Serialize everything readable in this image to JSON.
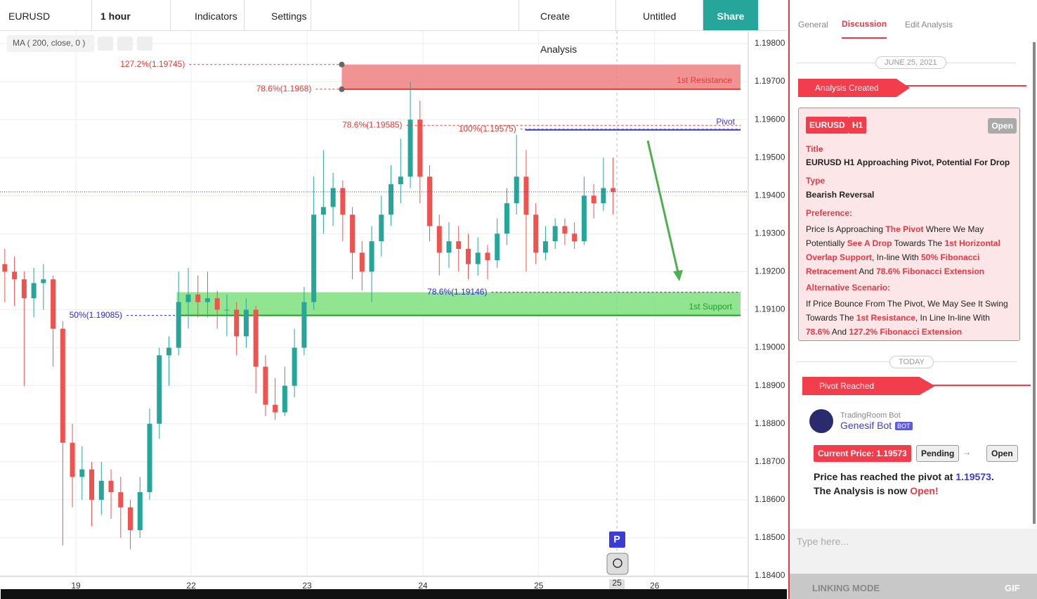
{
  "toolbar": {
    "symbol": "EURUSD",
    "interval": "1 hour",
    "indicators": "Indicators",
    "settings": "Settings",
    "create_analysis": "Create Analysis",
    "layout": "Untitled",
    "share": "Share"
  },
  "indicator_legend": "MA ( 200, close, 0 )",
  "chart_data": {
    "type": "candlestick",
    "up_color": "#26a69a",
    "down_color": "#ef5350",
    "xlim": [
      0,
      77.5
    ],
    "ylim": [
      1.184,
      1.198
    ],
    "xticks": [
      {
        "value": 7.86,
        "label": "19"
      },
      {
        "value": 19.8,
        "label": "22"
      },
      {
        "value": 31.8,
        "label": "23"
      },
      {
        "value": 43.8,
        "label": "24"
      },
      {
        "value": 55.8,
        "label": "25"
      },
      {
        "value": 67.8,
        "label": "26"
      }
    ],
    "yticks": [
      {
        "value": 1.184,
        "label": "1.18400"
      },
      {
        "value": 1.185,
        "label": "1.18500"
      },
      {
        "value": 1.186,
        "label": "1.18600"
      },
      {
        "value": 1.187,
        "label": "1.18700"
      },
      {
        "value": 1.188,
        "label": "1.18800"
      },
      {
        "value": 1.189,
        "label": "1.18900"
      },
      {
        "value": 1.19,
        "label": "1.19000"
      },
      {
        "value": 1.191,
        "label": "1.19100"
      },
      {
        "value": 1.192,
        "label": "1.19200"
      },
      {
        "value": 1.193,
        "label": "1.19300"
      },
      {
        "value": 1.194,
        "label": "1.19400"
      },
      {
        "value": 1.195,
        "label": "1.19500"
      },
      {
        "value": 1.196,
        "label": "1.19600"
      },
      {
        "value": 1.197,
        "label": "1.19700"
      },
      {
        "value": 1.198,
        "label": "1.19800"
      }
    ],
    "grid": true,
    "cursor": {
      "x": 63.9,
      "label": "25"
    },
    "ohlc": [
      [
        1.1922,
        1.1926,
        1.1912,
        1.192
      ],
      [
        1.192,
        1.1924,
        1.1911,
        1.1918
      ],
      [
        1.1918,
        1.192,
        1.189,
        1.1913
      ],
      [
        1.1913,
        1.1921,
        1.1908,
        1.1917
      ],
      [
        1.1917,
        1.1922,
        1.191,
        1.1918
      ],
      [
        1.1918,
        1.1919,
        1.1895,
        1.1905
      ],
      [
        1.1905,
        1.1907,
        1.1848,
        1.1875
      ],
      [
        1.1875,
        1.188,
        1.1858,
        1.1866
      ],
      [
        1.1866,
        1.1874,
        1.186,
        1.1868
      ],
      [
        1.1868,
        1.187,
        1.1853,
        1.186
      ],
      [
        1.186,
        1.187,
        1.1856,
        1.1865
      ],
      [
        1.1865,
        1.1868,
        1.1855,
        1.1862
      ],
      [
        1.1862,
        1.1866,
        1.185,
        1.1858
      ],
      [
        1.1858,
        1.186,
        1.1847,
        1.1852
      ],
      [
        1.1852,
        1.1866,
        1.185,
        1.1862
      ],
      [
        1.1862,
        1.1884,
        1.186,
        1.188
      ],
      [
        1.188,
        1.19,
        1.1876,
        1.1898
      ],
      [
        1.1898,
        1.1903,
        1.189,
        1.19
      ],
      [
        1.19,
        1.192,
        1.1898,
        1.1912
      ],
      [
        1.1912,
        1.1921,
        1.1905,
        1.1914
      ],
      [
        1.1914,
        1.1919,
        1.1908,
        1.1912
      ],
      [
        1.1912,
        1.192,
        1.1908,
        1.1913
      ],
      [
        1.1913,
        1.1915,
        1.1905,
        1.191
      ],
      [
        1.191,
        1.1914,
        1.1903,
        1.191
      ],
      [
        1.191,
        1.1912,
        1.1898,
        1.1903
      ],
      [
        1.1903,
        1.1913,
        1.19,
        1.191
      ],
      [
        1.191,
        1.1911,
        1.1888,
        1.1895
      ],
      [
        1.1895,
        1.1898,
        1.1882,
        1.1885
      ],
      [
        1.1885,
        1.1892,
        1.1881,
        1.1883
      ],
      [
        1.1883,
        1.1895,
        1.1882,
        1.189
      ],
      [
        1.189,
        1.1905,
        1.1887,
        1.19
      ],
      [
        1.19,
        1.1916,
        1.1898,
        1.1912
      ],
      [
        1.1912,
        1.1945,
        1.191,
        1.1935
      ],
      [
        1.1935,
        1.1952,
        1.193,
        1.1937
      ],
      [
        1.1937,
        1.1946,
        1.1932,
        1.1942
      ],
      [
        1.1942,
        1.1944,
        1.1928,
        1.1935
      ],
      [
        1.1935,
        1.1937,
        1.1918,
        1.1925
      ],
      [
        1.1925,
        1.1928,
        1.1915,
        1.192
      ],
      [
        1.192,
        1.1932,
        1.1912,
        1.1928
      ],
      [
        1.1928,
        1.194,
        1.1924,
        1.1935
      ],
      [
        1.1935,
        1.1948,
        1.1932,
        1.1943
      ],
      [
        1.1943,
        1.1955,
        1.1938,
        1.1945
      ],
      [
        1.1945,
        1.197,
        1.1942,
        1.196
      ],
      [
        1.196,
        1.1965,
        1.1938,
        1.1945
      ],
      [
        1.1945,
        1.1948,
        1.1928,
        1.1932
      ],
      [
        1.1932,
        1.1935,
        1.1919,
        1.1925
      ],
      [
        1.1925,
        1.1933,
        1.1921,
        1.1928
      ],
      [
        1.1928,
        1.1932,
        1.192,
        1.1926
      ],
      [
        1.1926,
        1.193,
        1.1918,
        1.1922
      ],
      [
        1.1922,
        1.1929,
        1.1919,
        1.1925
      ],
      [
        1.1925,
        1.1927,
        1.1918,
        1.1923
      ],
      [
        1.1923,
        1.1934,
        1.1921,
        1.193
      ],
      [
        1.193,
        1.1942,
        1.1927,
        1.1938
      ],
      [
        1.1938,
        1.1956,
        1.1935,
        1.1945
      ],
      [
        1.1945,
        1.1952,
        1.192,
        1.1935
      ],
      [
        1.1935,
        1.1938,
        1.1922,
        1.1925
      ],
      [
        1.1925,
        1.1932,
        1.1923,
        1.1928
      ],
      [
        1.1928,
        1.1934,
        1.1926,
        1.1932
      ],
      [
        1.1932,
        1.1934,
        1.1927,
        1.193
      ],
      [
        1.193,
        1.1933,
        1.1926,
        1.1928
      ],
      [
        1.1928,
        1.1945,
        1.1927,
        1.194
      ],
      [
        1.194,
        1.1943,
        1.1934,
        1.1938
      ],
      [
        1.1938,
        1.195,
        1.1936,
        1.1942
      ],
      [
        1.1942,
        1.195,
        1.1935,
        1.1941
      ]
    ],
    "zones": [
      {
        "label": "1st Resistance",
        "top": 1.19745,
        "bottom": 1.1968,
        "from": 35.4,
        "to": 76.7,
        "color": "#f08080",
        "text_color": "#e53935"
      },
      {
        "label": "1st Support",
        "top": 1.19146,
        "bottom": 1.19085,
        "from": 18.3,
        "to": 76.7,
        "color": "#7ee07e",
        "text_color": "#1e9e1e"
      }
    ],
    "levels": [
      {
        "label": "127.2%(1.19745)",
        "price": 1.19745,
        "from": 19.6,
        "to": 35.4,
        "color": "#e53935"
      },
      {
        "label": "78.6%(1.1968)",
        "price": 1.1968,
        "from": 32.7,
        "to": 35.4,
        "color": "#e53935"
      },
      {
        "label": "78.6%(1.19585)",
        "price": 1.19585,
        "from": 42.1,
        "to": 76.7,
        "color": "#e53935"
      },
      {
        "label": "100%(1.19575)",
        "price": 1.19575,
        "from": 53.9,
        "to": 76.7,
        "color": "#e53935"
      },
      {
        "label": "78.6%(1.19146)",
        "price": 1.19146,
        "from": 50.9,
        "to": 76.7,
        "color": "#2a2ad0"
      },
      {
        "label": "50%(1.19085)",
        "price": 1.19085,
        "from": 13.1,
        "to": 18.3,
        "color": "#2a2ad0"
      }
    ],
    "pivot": {
      "label": "Pivot",
      "price": 1.19573,
      "from": 54.4,
      "to": 76.7,
      "color": "#3b3bd6"
    }
  },
  "panel": {
    "tabs": [
      "General",
      "Discussion",
      "Edit Analysis"
    ],
    "date": "JUNE 25, 2021",
    "created": "Analysis Created",
    "card": {
      "symbol": "EURUSD",
      "timeframe": "H1",
      "status": "Open",
      "title_label": "Title",
      "title": "EURUSD H1 Approaching Pivot, Potential For Drop",
      "type_label": "Type",
      "type": "Bearish Reversal",
      "preference_label": "Preference:",
      "preference": [
        {
          "t": "Price Is Approaching "
        },
        {
          "t": "The Pivot",
          "hl": "red"
        },
        {
          "t": " Where We May Potentially "
        },
        {
          "t": "See A Drop",
          "hl": "red"
        },
        {
          "t": " Towards The "
        },
        {
          "t": "1st Horizontal Overlap Support",
          "hl": "red"
        },
        {
          "t": ", In-line With "
        },
        {
          "t": "50% Fibonacci Retracement",
          "hl": "red"
        },
        {
          "t": " And "
        },
        {
          "t": "78.6% Fibonacci Extension",
          "hl": "red"
        }
      ],
      "alternative_label": "Alternative Scenario:",
      "alternative": [
        {
          "t": "If Price Bounce From The Pivot, We May See It Swing Towards The "
        },
        {
          "t": "1st Resistance",
          "hl": "red"
        },
        {
          "t": ", In Line In-line With "
        },
        {
          "t": "78.6%",
          "hl": "red"
        },
        {
          "t": " And "
        },
        {
          "t": "127.2% Fibonacci Extension",
          "hl": "red"
        }
      ]
    },
    "today": "TODAY",
    "reached": "Pivot Reached",
    "bot_org": "TradingRoom Bot",
    "bot_name": "Genesif Bot",
    "bot_tag": "BOT",
    "current_price": "Current Price: 1.19573",
    "from_status": "Pending",
    "to_status": "Open",
    "message": [
      {
        "t": "Price has reached the pivot at "
      },
      {
        "t": "1.19573",
        "hl": "blue"
      },
      {
        "t": ". The Analysis is now "
      },
      {
        "t": "Open!",
        "hl": "red"
      }
    ],
    "input_placeholder": "Type here...",
    "linking_mode": "LINKING MODE",
    "gif": "GIF"
  }
}
